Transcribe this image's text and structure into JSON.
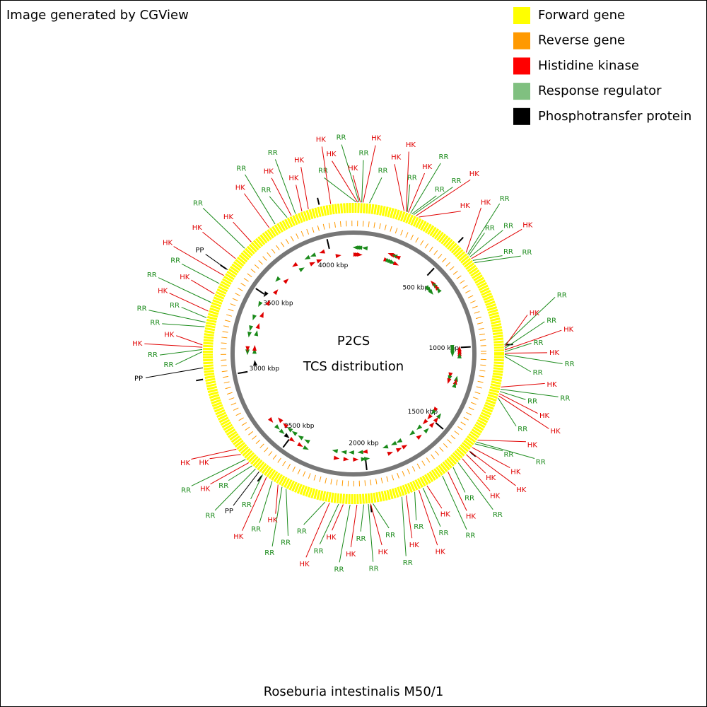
{
  "header": {
    "text": "Image generated by CGView"
  },
  "legend": [
    {
      "name": "Forward gene",
      "color": "#ffff00"
    },
    {
      "name": "Reverse gene",
      "color": "#ff9900"
    },
    {
      "name": "Histidine kinase",
      "color": "#ff0000"
    },
    {
      "name": "Response regulator",
      "color": "#80c080"
    },
    {
      "name": "Phosphotransfer protein",
      "color": "#000000"
    }
  ],
  "center": {
    "title": "P2CS",
    "subtitle": "TCS distribution"
  },
  "footer": {
    "organism": "Roseburia intestinalis M50/1"
  },
  "map": {
    "genome_length_kbp": 4150,
    "ticks": [
      {
        "value": 500,
        "label": "500 kbp"
      },
      {
        "value": 1000,
        "label": "1000 kbp"
      },
      {
        "value": 1500,
        "label": "1500 kbp"
      },
      {
        "value": 2000,
        "label": "2000 kbp"
      },
      {
        "value": 2500,
        "label": "2500 kbp"
      },
      {
        "value": 3000,
        "label": "3000 kbp"
      },
      {
        "value": 3500,
        "label": "3500 kbp"
      },
      {
        "value": 4000,
        "label": "4000 kbp"
      }
    ],
    "label_colors": {
      "HK": "#e00000",
      "RR": "#1a8a1a",
      "PP": "#000000"
    },
    "features": [
      {
        "label": "RR",
        "kbp": 12
      },
      {
        "label": "HK",
        "kbp": 18
      },
      {
        "label": "RR",
        "kbp": 24
      },
      {
        "label": "HK",
        "kbp": 30
      },
      {
        "label": "RR",
        "kbp": 36
      },
      {
        "label": "HK",
        "kbp": 42
      },
      {
        "label": "RR",
        "kbp": 70
      },
      {
        "label": "HK",
        "kbp": 225
      },
      {
        "label": "HK",
        "kbp": 235
      },
      {
        "label": "RR",
        "kbp": 240
      },
      {
        "label": "HK",
        "kbp": 245
      },
      {
        "label": "RR",
        "kbp": 255
      },
      {
        "label": "RR",
        "kbp": 262
      },
      {
        "label": "RR",
        "kbp": 270
      },
      {
        "label": "HK",
        "kbp": 282
      },
      {
        "label": "HK",
        "kbp": 295
      },
      {
        "label": "HK",
        "kbp": 555
      },
      {
        "label": "RR",
        "kbp": 565
      },
      {
        "label": "RR",
        "kbp": 572
      },
      {
        "label": "RR",
        "kbp": 580
      },
      {
        "label": "HK",
        "kbp": 590
      },
      {
        "label": "RR",
        "kbp": 600
      },
      {
        "label": "RR",
        "kbp": 612
      },
      {
        "label": "RR",
        "kbp": 1000
      },
      {
        "label": "HK",
        "kbp": 1008
      },
      {
        "label": "RR",
        "kbp": 1015
      },
      {
        "label": "HK",
        "kbp": 1022
      },
      {
        "label": "RR",
        "kbp": 1030
      },
      {
        "label": "HK",
        "kbp": 1036
      },
      {
        "label": "RR",
        "kbp": 1042
      },
      {
        "label": "RR",
        "kbp": 1050
      },
      {
        "label": "HK",
        "kbp": 1185
      },
      {
        "label": "RR",
        "kbp": 1195
      },
      {
        "label": "RR",
        "kbp": 1205
      },
      {
        "label": "HK",
        "kbp": 1215
      },
      {
        "label": "HK",
        "kbp": 1225
      },
      {
        "label": "RR",
        "kbp": 1235
      },
      {
        "label": "HK",
        "kbp": 1440
      },
      {
        "label": "RR",
        "kbp": 1450
      },
      {
        "label": "RR",
        "kbp": 1460
      },
      {
        "label": "HK",
        "kbp": 1480
      },
      {
        "label": "HK",
        "kbp": 1500
      },
      {
        "label": "HK",
        "kbp": 1520
      },
      {
        "label": "HK",
        "kbp": 1545
      },
      {
        "label": "RR",
        "kbp": 1570
      },
      {
        "label": "RR",
        "kbp": 1600
      },
      {
        "label": "HK",
        "kbp": 1630
      },
      {
        "label": "RR",
        "kbp": 1660
      },
      {
        "label": "HK",
        "kbp": 1740
      },
      {
        "label": "RR",
        "kbp": 1760
      },
      {
        "label": "HK",
        "kbp": 1780
      },
      {
        "label": "RR",
        "kbp": 1800
      },
      {
        "label": "HK",
        "kbp": 1840
      },
      {
        "label": "RR",
        "kbp": 1860
      },
      {
        "label": "RR",
        "kbp": 1990
      },
      {
        "label": "HK",
        "kbp": 2000
      },
      {
        "label": "RR",
        "kbp": 2010
      },
      {
        "label": "RR",
        "kbp": 2030
      },
      {
        "label": "HK",
        "kbp": 2060
      },
      {
        "label": "RR",
        "kbp": 2090
      },
      {
        "label": "HK",
        "kbp": 2120
      },
      {
        "label": "RR",
        "kbp": 2140
      },
      {
        "label": "HK",
        "kbp": 2180
      },
      {
        "label": "RR",
        "kbp": 2200
      },
      {
        "label": "RR",
        "kbp": 2380
      },
      {
        "label": "RR",
        "kbp": 2400
      },
      {
        "label": "HK",
        "kbp": 2420
      },
      {
        "label": "RR",
        "kbp": 2450
      },
      {
        "label": "HK",
        "kbp": 2480
      },
      {
        "label": "RR",
        "kbp": 2500
      },
      {
        "label": "PP",
        "kbp": 2520
      },
      {
        "label": "RR",
        "kbp": 2540
      },
      {
        "label": "RR",
        "kbp": 2560
      },
      {
        "label": "HK",
        "kbp": 2580
      },
      {
        "label": "RR",
        "kbp": 2600
      },
      {
        "label": "HK",
        "kbp": 2630
      },
      {
        "label": "HK",
        "kbp": 2660
      },
      {
        "label": "PP",
        "kbp": 3050
      },
      {
        "label": "RR",
        "kbp": 3120
      },
      {
        "label": "RR",
        "kbp": 3130
      },
      {
        "label": "HK",
        "kbp": 3140
      },
      {
        "label": "HK",
        "kbp": 3150
      },
      {
        "label": "RR",
        "kbp": 3230
      },
      {
        "label": "RR",
        "kbp": 3250
      },
      {
        "label": "RR",
        "kbp": 3270
      },
      {
        "label": "HK",
        "kbp": 3300
      },
      {
        "label": "RR",
        "kbp": 3340
      },
      {
        "label": "HK",
        "kbp": 3380
      },
      {
        "label": "RR",
        "kbp": 3430
      },
      {
        "label": "HK",
        "kbp": 3470
      },
      {
        "label": "PP",
        "kbp": 3500
      },
      {
        "label": "HK",
        "kbp": 3560
      },
      {
        "label": "RR",
        "kbp": 3620
      },
      {
        "label": "HK",
        "kbp": 3660
      },
      {
        "label": "HK",
        "kbp": 3760
      },
      {
        "label": "RR",
        "kbp": 3790
      },
      {
        "label": "RR",
        "kbp": 3850
      },
      {
        "label": "HK",
        "kbp": 3870
      },
      {
        "label": "RR",
        "kbp": 3890
      },
      {
        "label": "HK",
        "kbp": 3920
      },
      {
        "label": "HK",
        "kbp": 3950
      },
      {
        "label": "HK",
        "kbp": 4050
      }
    ]
  }
}
